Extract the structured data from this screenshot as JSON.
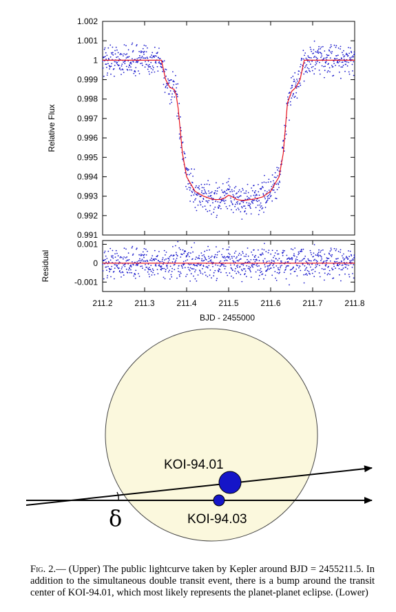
{
  "chart_data": [
    {
      "type": "scatter",
      "panel": "upper",
      "title": "",
      "ylabel": "Relative Flux",
      "xlim": [
        211.2,
        211.8
      ],
      "ylim": [
        0.991,
        1.002
      ],
      "yticks": [
        "1.002",
        "1.001",
        "1",
        "0.999",
        "0.998",
        "0.997",
        "0.996",
        "0.995",
        "0.994",
        "0.993",
        "0.992",
        "0.991"
      ],
      "series": [
        {
          "marker": "points",
          "color": "#1a1acc",
          "x": [
            211.2,
            211.22,
            211.24,
            211.26,
            211.28,
            211.3,
            211.32,
            211.34,
            211.36,
            211.37,
            211.38,
            211.39,
            211.4,
            211.42,
            211.44,
            211.46,
            211.48,
            211.5,
            211.52,
            211.54,
            211.56,
            211.58,
            211.6,
            211.62,
            211.63,
            211.64,
            211.65,
            211.66,
            211.68,
            211.7,
            211.72,
            211.74,
            211.76,
            211.78,
            211.8
          ],
          "values": [
            1.0,
            1.0,
            1.0,
            1.0,
            1.0,
            1.0,
            1.0,
            0.9995,
            0.9986,
            0.9984,
            0.997,
            0.9952,
            0.9942,
            0.9933,
            0.993,
            0.9928,
            0.9929,
            0.9931,
            0.9929,
            0.9928,
            0.9928,
            0.993,
            0.9934,
            0.9945,
            0.9962,
            0.998,
            0.9986,
            0.9994,
            1.0,
            1.0,
            1.0,
            1.0,
            1.0,
            1.0,
            1.0
          ]
        },
        {
          "marker": "line",
          "color": "#e8101a",
          "x": [
            211.2,
            211.34,
            211.35,
            211.36,
            211.37,
            211.375,
            211.38,
            211.39,
            211.4,
            211.42,
            211.44,
            211.46,
            211.47,
            211.48,
            211.49,
            211.5,
            211.51,
            211.52,
            211.53,
            211.54,
            211.55,
            211.56,
            211.58,
            211.6,
            211.62,
            211.63,
            211.635,
            211.64,
            211.65,
            211.66,
            211.67,
            211.68,
            211.8
          ],
          "values": [
            1.0,
            1.0,
            0.999,
            0.9986,
            0.9985,
            0.9982,
            0.9975,
            0.9952,
            0.994,
            0.99325,
            0.993,
            0.99285,
            0.99282,
            0.99283,
            0.9929,
            0.99305,
            0.99295,
            0.99282,
            0.99279,
            0.99279,
            0.99282,
            0.99285,
            0.99295,
            0.99325,
            0.994,
            0.9952,
            0.9965,
            0.9978,
            0.9984,
            0.9986,
            0.999,
            1.0,
            1.0
          ]
        }
      ]
    },
    {
      "type": "scatter",
      "panel": "residual",
      "ylabel": "Residual",
      "xlabel": "BJD - 2455000",
      "xlim": [
        211.2,
        211.8
      ],
      "ylim": [
        -0.0015,
        0.0012
      ],
      "xticks": [
        "211.2",
        "211.3",
        "211.4",
        "211.5",
        "211.6",
        "211.7",
        "211.8"
      ],
      "yticks": [
        "0.001",
        "0",
        "-0.001"
      ],
      "series": [
        {
          "marker": "points",
          "color": "#1a1acc",
          "values_mean": 0,
          "values_spread": 0.0005
        },
        {
          "marker": "line",
          "color": "#e8101a",
          "values": [
            0,
            0
          ]
        }
      ]
    }
  ],
  "diagram": {
    "planet_a_label": "KOI-94.01",
    "planet_b_label": "KOI-94.03",
    "angle_label": "δ",
    "star_color": "#fbf8dd",
    "planet_color": "#1515c8"
  },
  "caption": {
    "fig_label": "Fig. 2.",
    "text": "— (Upper) The public lightcurve taken by Kepler around BJD = 2455211.5. In addition to the simultaneous double transit event, there is a bump around the transit center of KOI-94.01, which most likely represents the planet-planet eclipse. (Lower)"
  }
}
